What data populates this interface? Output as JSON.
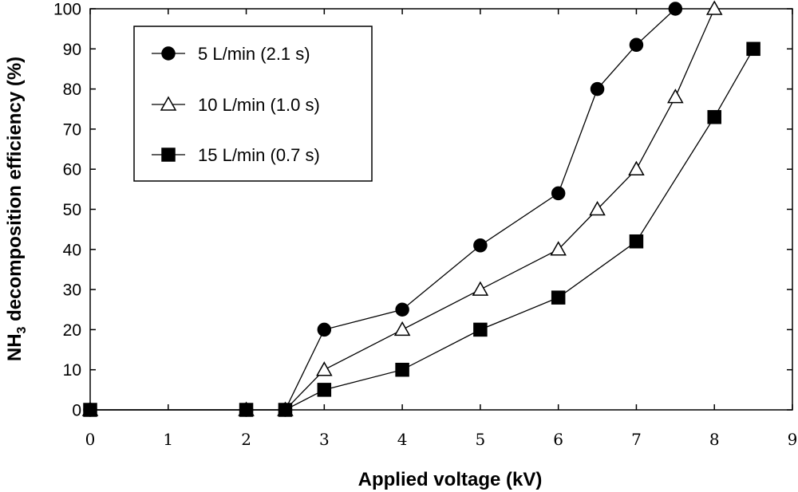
{
  "chart_data": {
    "type": "line",
    "xlabel": "Applied voltage (kV)",
    "ylabel_main": "NH",
    "ylabel_sub": "3",
    "ylabel_rest": " decomposition efficiency (%)",
    "xlim": [
      0,
      9
    ],
    "ylim": [
      0,
      100
    ],
    "x_ticks": [
      "0",
      "1",
      "2",
      "3",
      "4",
      "5",
      "6",
      "7",
      "8",
      "9"
    ],
    "y_ticks": [
      "0",
      "10",
      "20",
      "30",
      "40",
      "50",
      "60",
      "70",
      "80",
      "90",
      "100"
    ],
    "legend_position": "top-left",
    "series": [
      {
        "name": "5 L/min (2.1 s)",
        "marker": "circle",
        "fill": "#000000",
        "x": [
          0,
          2,
          2.5,
          3,
          4,
          5,
          6,
          6.5,
          7,
          7.5
        ],
        "y": [
          0,
          0,
          0,
          20,
          25,
          41,
          54,
          80,
          91,
          100
        ]
      },
      {
        "name": "10 L/min (1.0 s)",
        "marker": "triangle",
        "fill": "#ffffff",
        "x": [
          0,
          2,
          2.5,
          3,
          4,
          5,
          6,
          6.5,
          7,
          7.5,
          8
        ],
        "y": [
          0,
          0,
          0,
          10,
          20,
          30,
          40,
          50,
          60,
          78,
          100
        ]
      },
      {
        "name": "15 L/min (0.7 s)",
        "marker": "square",
        "fill": "#000000",
        "x": [
          0,
          2,
          2.5,
          3,
          4,
          5,
          6,
          7,
          8,
          8.5
        ],
        "y": [
          0,
          0,
          0,
          5,
          10,
          20,
          28,
          42,
          73,
          90
        ]
      }
    ]
  }
}
